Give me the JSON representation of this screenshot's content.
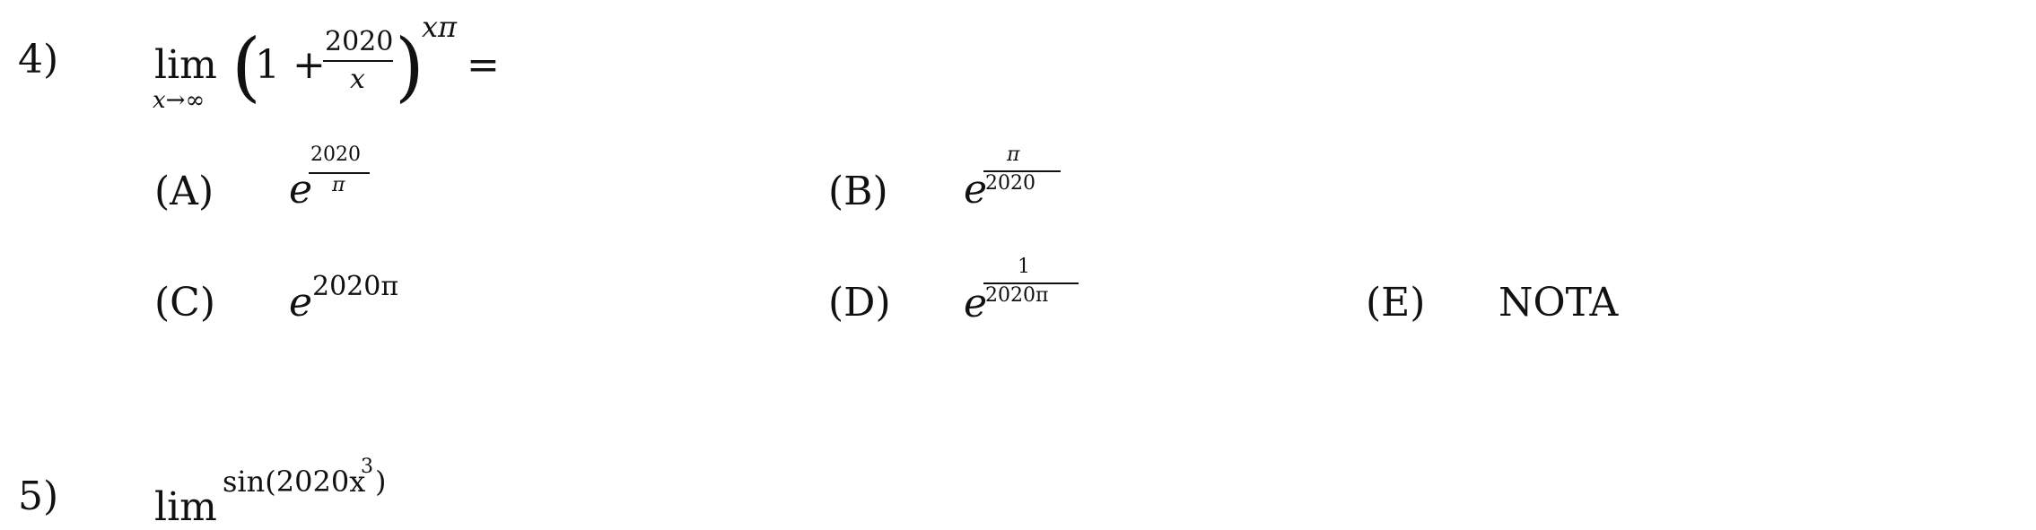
{
  "question4": {
    "number": "4)",
    "lim_word": "lim",
    "lim_sub": "x→∞",
    "paren_open": "(",
    "one_plus": "1 +",
    "frac_num": "2020",
    "frac_den": "x",
    "paren_close": ")",
    "exponent": "xπ",
    "equals": "="
  },
  "options": {
    "A": {
      "label": "(A)",
      "base": "e",
      "exp_num": "2020",
      "exp_den": "π"
    },
    "B": {
      "label": "(B)",
      "base": "e",
      "exp_num": "π",
      "exp_den": "2020"
    },
    "C": {
      "label": "(C)",
      "base": "e",
      "exp": "2020π"
    },
    "D": {
      "label": "(D)",
      "base": "e",
      "exp_num": "1",
      "exp_den": "2020π"
    },
    "E": {
      "label": "(E)",
      "text": "NOTA"
    }
  },
  "question5_partial": {
    "number": "5)",
    "lim_word": "lim",
    "func": "sin(2020x",
    "power": "3",
    "close": ")"
  }
}
